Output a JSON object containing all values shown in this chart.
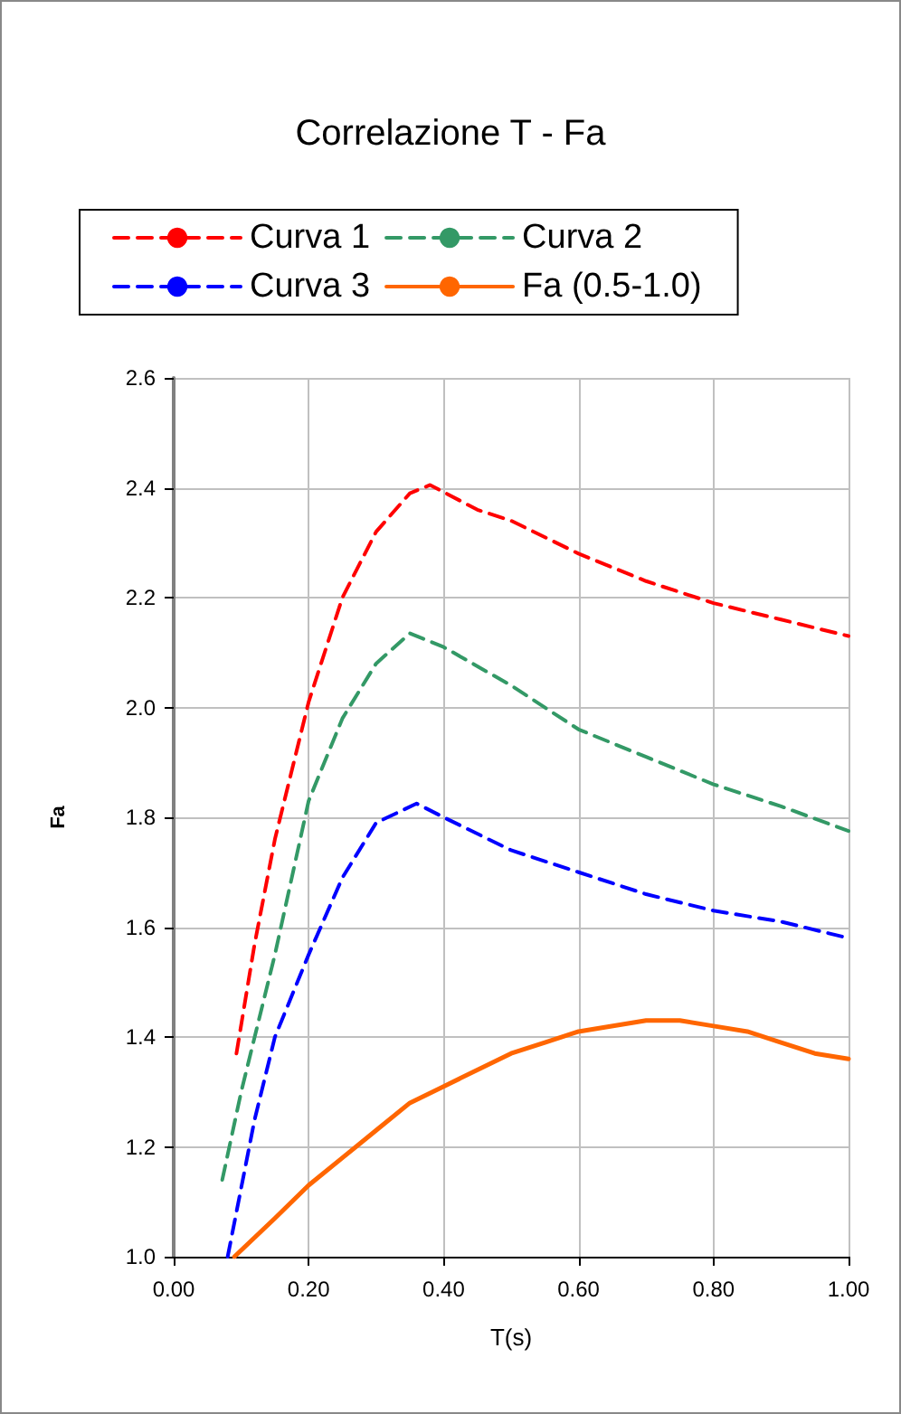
{
  "chart_data": {
    "type": "line",
    "title": "Correlazione T - Fa",
    "xlabel": "T(s)",
    "ylabel": "Fa",
    "xlim": [
      0,
      1
    ],
    "xticks": [
      {
        "value": 0,
        "label": "0.00"
      },
      {
        "value": 0.2,
        "label": "0.20"
      },
      {
        "value": 0.4,
        "label": "0.40"
      },
      {
        "value": 0.6,
        "label": "0.60"
      },
      {
        "value": 0.8,
        "label": "0.80"
      },
      {
        "value": 1,
        "label": "1.00"
      }
    ],
    "ylim": [
      1,
      2.6
    ],
    "yticks": [
      {
        "value": 1,
        "label": "1.0"
      },
      {
        "value": 1.2,
        "label": "1.2"
      },
      {
        "value": 1.4,
        "label": "1.4"
      },
      {
        "value": 1.6,
        "label": "1.6"
      },
      {
        "value": 1.8,
        "label": "1.8"
      },
      {
        "value": 2,
        "label": "2.0"
      },
      {
        "value": 2.2,
        "label": "2.2"
      },
      {
        "value": 2.4,
        "label": "2.4"
      },
      {
        "value": 2.6,
        "label": "2.6"
      }
    ],
    "grid": true,
    "legend": "top",
    "marker": "none",
    "series": [
      {
        "name": "Curva 1",
        "color": "#ff0000",
        "line_style": "dashed",
        "x": [
          0.093,
          0.12,
          0.15,
          0.2,
          0.25,
          0.3,
          0.35,
          0.38,
          0.45,
          0.5,
          0.6,
          0.7,
          0.8,
          0.9,
          1.0
        ],
        "values": [
          1.37,
          1.57,
          1.76,
          2.01,
          2.2,
          2.32,
          2.39,
          2.405,
          2.36,
          2.34,
          2.28,
          2.23,
          2.19,
          2.16,
          2.13
        ]
      },
      {
        "name": "Curva 2",
        "color": "#339966",
        "line_style": "dashed",
        "x": [
          0.072,
          0.1,
          0.15,
          0.2,
          0.25,
          0.3,
          0.35,
          0.4,
          0.5,
          0.6,
          0.7,
          0.8,
          0.9,
          1.0
        ],
        "values": [
          1.14,
          1.3,
          1.55,
          1.83,
          1.98,
          2.08,
          2.135,
          2.11,
          2.04,
          1.96,
          1.91,
          1.86,
          1.82,
          1.775
        ]
      },
      {
        "name": "Curva 3",
        "color": "#0000ff",
        "line_style": "dashed",
        "x": [
          0.08,
          0.12,
          0.15,
          0.2,
          0.25,
          0.3,
          0.36,
          0.4,
          0.5,
          0.6,
          0.7,
          0.8,
          0.9,
          1.0
        ],
        "values": [
          1.0,
          1.25,
          1.4,
          1.55,
          1.69,
          1.79,
          1.825,
          1.8,
          1.74,
          1.7,
          1.66,
          1.63,
          1.61,
          1.58
        ]
      },
      {
        "name": "Fa (0.5-1.0)",
        "color": "#ff6600",
        "line_style": "solid",
        "x": [
          0.09,
          0.15,
          0.2,
          0.25,
          0.3,
          0.35,
          0.4,
          0.5,
          0.55,
          0.6,
          0.7,
          0.75,
          0.8,
          0.85,
          0.9,
          0.95,
          1.0
        ],
        "values": [
          1.0,
          1.07,
          1.13,
          1.18,
          1.23,
          1.28,
          1.31,
          1.37,
          1.39,
          1.41,
          1.43,
          1.43,
          1.42,
          1.41,
          1.39,
          1.37,
          1.36
        ]
      }
    ]
  }
}
